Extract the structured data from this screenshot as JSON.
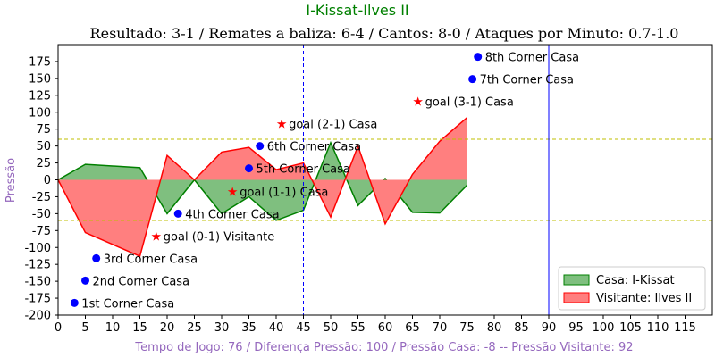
{
  "chart_data": {
    "type": "area",
    "title": "I-Kissat-Ilves II",
    "subtitle": "Resultado: 3-1 / Remates a baliza: 6-4 / Cantos: 8-0 / Ataques por Minuto: 0.7-1.0",
    "xlabel": "Tempo de Jogo: 76 / Diferença Pressão: 100 / Pressão Casa: -8 -- Pressão Visitante: 92",
    "ylabel": "Pressão",
    "xlim": [
      0,
      120
    ],
    "ylim": [
      -200,
      200
    ],
    "xticks": [
      0,
      5,
      10,
      15,
      20,
      25,
      30,
      35,
      40,
      45,
      50,
      55,
      60,
      65,
      70,
      75,
      80,
      85,
      90,
      95,
      100,
      105,
      110,
      115
    ],
    "yticks": [
      -200,
      -175,
      -150,
      -125,
      -100,
      -75,
      -50,
      -25,
      0,
      25,
      50,
      75,
      100,
      125,
      150,
      175
    ],
    "hlines": [
      60,
      -60
    ],
    "vlines": [
      {
        "x": 45,
        "style": "dashed"
      },
      {
        "x": 90,
        "style": "solid"
      }
    ],
    "series": [
      {
        "name": "Casa: I-Kissat",
        "color": "#008000",
        "fill": "#7fbf7f",
        "x": [
          0,
          5,
          15,
          20,
          25,
          30,
          35,
          40,
          45,
          50,
          55,
          60,
          65,
          70,
          75
        ],
        "values": [
          0,
          23,
          18,
          -50,
          0,
          -50,
          -25,
          -60,
          -45,
          55,
          -38,
          2,
          -48,
          -49,
          -8
        ]
      },
      {
        "name": "Visitante: Ilves II",
        "color": "#ff0000",
        "fill": "#ff7f7f",
        "x": [
          0,
          5,
          15,
          20,
          25,
          30,
          35,
          40,
          45,
          50,
          55,
          60,
          65,
          70,
          75
        ],
        "values": [
          0,
          -78,
          -113,
          36,
          0,
          41,
          48,
          15,
          25,
          -55,
          50,
          -65,
          8,
          57,
          92
        ]
      }
    ],
    "markers": [
      {
        "type": "corner",
        "x": 3,
        "y": -182,
        "label": "1st Corner Casa"
      },
      {
        "type": "corner",
        "x": 5,
        "y": -149,
        "label": "2nd Corner Casa"
      },
      {
        "type": "corner",
        "x": 7,
        "y": -116,
        "label": "3rd Corner Casa"
      },
      {
        "type": "corner",
        "x": 22,
        "y": -50,
        "label": "4th Corner Casa"
      },
      {
        "type": "corner",
        "x": 35,
        "y": 17,
        "label": "5th Corner Casa"
      },
      {
        "type": "corner",
        "x": 37,
        "y": 50,
        "label": "6th Corner Casa"
      },
      {
        "type": "corner",
        "x": 76,
        "y": 149,
        "label": "7th Corner Casa"
      },
      {
        "type": "corner",
        "x": 77,
        "y": 182,
        "label": "8th Corner Casa"
      },
      {
        "type": "goal",
        "x": 18,
        "y": -83,
        "label": "goal (0-1) Visitante"
      },
      {
        "type": "goal",
        "x": 32,
        "y": -17,
        "label": "goal (1-1) Casa"
      },
      {
        "type": "goal",
        "x": 41,
        "y": 83,
        "label": "goal (2-1) Casa"
      },
      {
        "type": "goal",
        "x": 66,
        "y": 116,
        "label": "goal (3-1) Casa"
      }
    ],
    "legend": {
      "position": "bottom-right",
      "entries": [
        "Casa: I-Kissat",
        "Visitante: Ilves II"
      ]
    },
    "grid": false
  }
}
